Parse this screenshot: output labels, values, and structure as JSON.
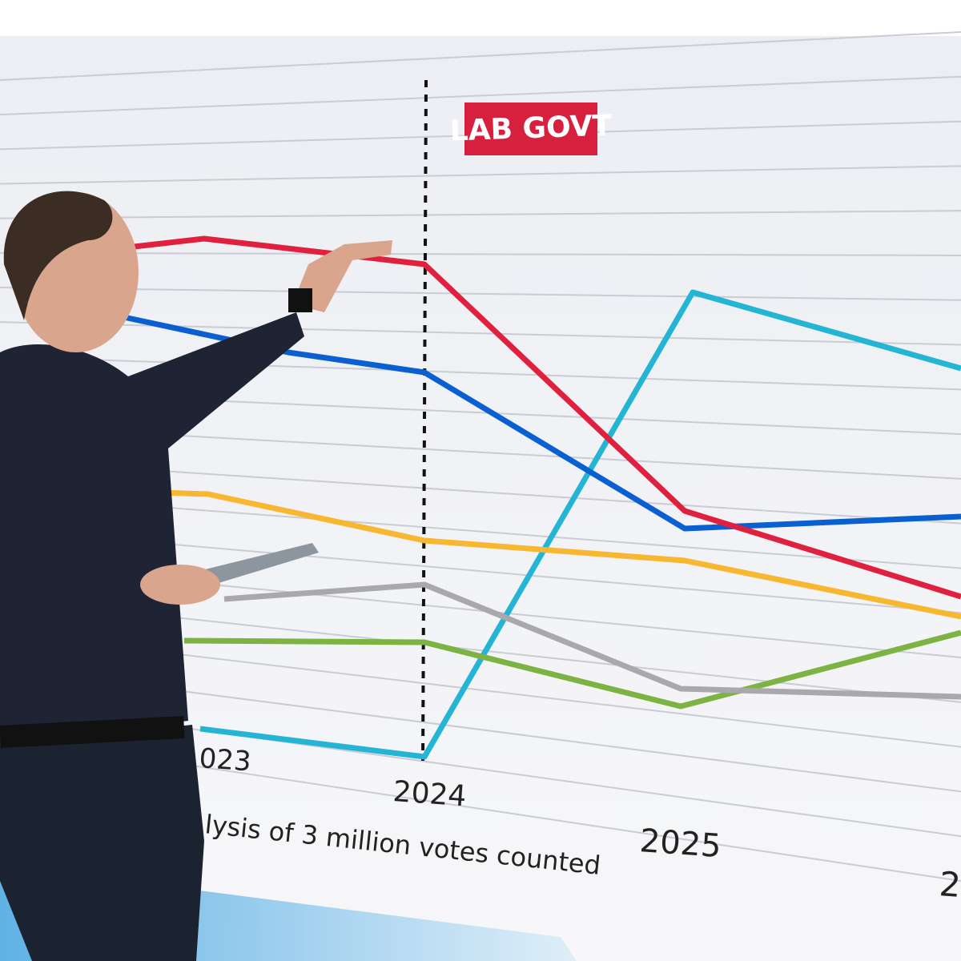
{
  "banner": {
    "label": "LAB GOVT"
  },
  "axis": {
    "labels": [
      "023",
      "2024",
      "2025",
      "2"
    ]
  },
  "caption": "lysis of 3 million votes counted"
}
